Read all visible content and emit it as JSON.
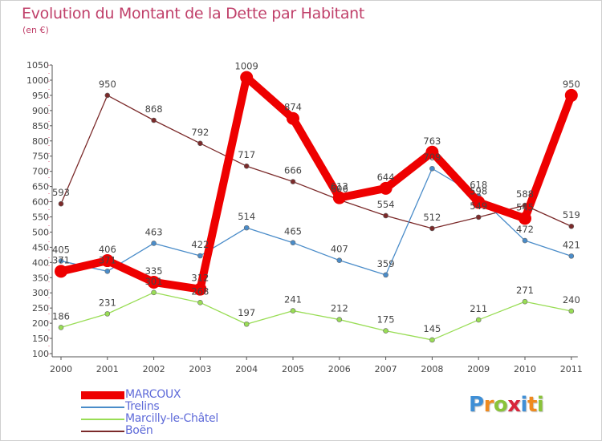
{
  "header": {
    "title": "Evolution du Montant de la Dette par Habitant",
    "unit": "(en €)"
  },
  "chart_data": {
    "type": "line",
    "title": "Evolution du Montant de la Dette par Habitant",
    "ylabel": "(en €)",
    "xlabel": "",
    "ylim": [
      100,
      1050
    ],
    "yticks": [
      100,
      150,
      200,
      250,
      300,
      350,
      400,
      450,
      500,
      550,
      600,
      650,
      700,
      750,
      800,
      850,
      900,
      950,
      1000,
      1050
    ],
    "categories": [
      "2000",
      "2001",
      "2002",
      "2003",
      "2004",
      "2005",
      "2006",
      "2007",
      "2008",
      "2009",
      "2010",
      "2011"
    ],
    "grid": false,
    "legend_position": "bottom-left",
    "series": [
      {
        "name": "MARCOUX",
        "color": "#ee0000",
        "values": [
          371,
          406,
          335,
          312,
          1009,
          874,
          613,
          644,
          763,
          598,
          545,
          950
        ],
        "labels": [
          "371",
          "406",
          "335",
          "312",
          "1009",
          "874",
          "613",
          "644",
          "763",
          "598",
          "545",
          "950"
        ]
      },
      {
        "name": "Trelins",
        "color": "#4a8cc9",
        "values": [
          405,
          371,
          463,
          422,
          514,
          465,
          407,
          359,
          709,
          618,
          472,
          421
        ],
        "labels": [
          "405",
          "371",
          "463",
          "422",
          "514",
          "465",
          "407",
          "359",
          "709",
          "618",
          "472",
          "421"
        ]
      },
      {
        "name": "Marcilly-le-Châtel",
        "color": "#99dd55",
        "values": [
          186,
          231,
          301,
          268,
          197,
          241,
          212,
          175,
          145,
          211,
          271,
          240
        ],
        "labels": [
          "186",
          "231",
          "301",
          "268",
          "197",
          "241",
          "212",
          "175",
          "145",
          "211",
          "271",
          "240"
        ]
      },
      {
        "name": "Boën",
        "color": "#7b2a2a",
        "values": [
          593,
          950,
          868,
          792,
          717,
          666,
          606,
          554,
          512,
          549,
          588,
          519
        ],
        "labels": [
          "593",
          "950",
          "868",
          "792",
          "717",
          "666",
          "606",
          "554",
          "512",
          "549",
          "588",
          "519"
        ]
      }
    ]
  },
  "legend": {
    "items": [
      "MARCOUX",
      "Trelins",
      "Marcilly-le-Châtel",
      "Boën"
    ]
  },
  "logo": {
    "letters": [
      "P",
      "r",
      "o",
      "x",
      "i",
      "t",
      "i"
    ],
    "colors": [
      "#3f8fd6",
      "#ef8a1f",
      "#8ac33a",
      "#d8263b",
      "#3f8fd6",
      "#ef8a1f",
      "#8ac33a"
    ]
  }
}
